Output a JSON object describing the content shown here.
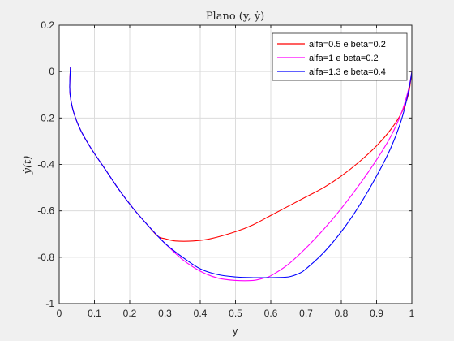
{
  "chart_data": {
    "type": "line",
    "title": "Plano (y, ẏ)",
    "xlabel": "y",
    "ylabel": "ẏ(t)",
    "xlim": [
      0,
      1
    ],
    "ylim": [
      -1,
      0.2
    ],
    "xticks": [
      "0",
      "0.1",
      "0.2",
      "0.3",
      "0.4",
      "0.5",
      "0.6",
      "0.7",
      "0.8",
      "0.9",
      "1"
    ],
    "yticks": [
      "0.2",
      "0",
      "-0.2",
      "-0.4",
      "-0.6",
      "-0.8",
      "-1"
    ],
    "grid": true,
    "legend_position": "top-right",
    "series": [
      {
        "name": "alfa=0.5 e beta=0.2",
        "color": "#ff0000",
        "x": [
          0.032,
          0.03,
          0.031,
          0.04,
          0.06,
          0.09,
          0.13,
          0.17,
          0.21,
          0.25,
          0.28,
          0.3,
          0.33,
          0.38,
          0.43,
          0.5,
          0.55,
          0.6,
          0.65,
          0.7,
          0.75,
          0.8,
          0.85,
          0.9,
          0.94,
          0.97,
          0.99,
          1.0
        ],
        "y": [
          0.02,
          -0.05,
          -0.1,
          -0.17,
          -0.25,
          -0.33,
          -0.42,
          -0.51,
          -0.59,
          -0.66,
          -0.71,
          -0.72,
          -0.73,
          -0.73,
          -0.72,
          -0.69,
          -0.66,
          -0.62,
          -0.58,
          -0.54,
          -0.5,
          -0.45,
          -0.39,
          -0.32,
          -0.25,
          -0.18,
          -0.1,
          0.0
        ]
      },
      {
        "name": "alfa=1 e beta=0.2",
        "color": "#ff00ff",
        "x": [
          0.032,
          0.03,
          0.031,
          0.04,
          0.06,
          0.09,
          0.13,
          0.17,
          0.21,
          0.25,
          0.3,
          0.35,
          0.4,
          0.45,
          0.5,
          0.55,
          0.58,
          0.6,
          0.65,
          0.7,
          0.75,
          0.8,
          0.85,
          0.9,
          0.94,
          0.97,
          0.99,
          1.0
        ],
        "y": [
          0.02,
          -0.05,
          -0.1,
          -0.17,
          -0.25,
          -0.33,
          -0.42,
          -0.51,
          -0.59,
          -0.66,
          -0.74,
          -0.81,
          -0.86,
          -0.89,
          -0.9,
          -0.9,
          -0.89,
          -0.88,
          -0.83,
          -0.76,
          -0.68,
          -0.59,
          -0.49,
          -0.38,
          -0.28,
          -0.18,
          -0.08,
          0.0
        ]
      },
      {
        "name": "alfa=1.3 e beta=0.4",
        "color": "#0000ff",
        "x": [
          0.032,
          0.03,
          0.031,
          0.04,
          0.06,
          0.09,
          0.13,
          0.17,
          0.21,
          0.25,
          0.3,
          0.35,
          0.4,
          0.45,
          0.5,
          0.55,
          0.6,
          0.65,
          0.68,
          0.7,
          0.75,
          0.8,
          0.85,
          0.9,
          0.94,
          0.97,
          0.99,
          1.0
        ],
        "y": [
          0.02,
          -0.05,
          -0.1,
          -0.17,
          -0.25,
          -0.33,
          -0.42,
          -0.51,
          -0.59,
          -0.66,
          -0.74,
          -0.8,
          -0.85,
          -0.875,
          -0.885,
          -0.888,
          -0.888,
          -0.885,
          -0.87,
          -0.85,
          -0.78,
          -0.69,
          -0.58,
          -0.45,
          -0.33,
          -0.21,
          -0.09,
          0.0
        ]
      }
    ]
  }
}
